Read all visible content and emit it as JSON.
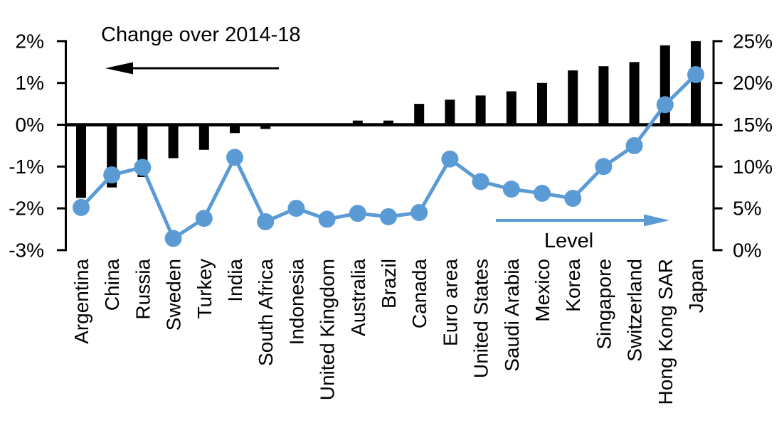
{
  "chart_data": {
    "type": "combo_bar_line",
    "title": "",
    "categories": [
      "Argentina",
      "China",
      "Russia",
      "Sweden",
      "Turkey",
      "India",
      "South Africa",
      "Indonesia",
      "United Kingdom",
      "Australia",
      "Brazil",
      "Canada",
      "Euro area",
      "United States",
      "Saudi Arabia",
      "Mexico",
      "Korea",
      "Singapore",
      "Switzerland",
      "Hong Kong SAR",
      "Japan"
    ],
    "series": [
      {
        "name": "Change over 2014-18",
        "type": "bar",
        "axis": "left",
        "color": "#000000",
        "values": [
          -1.75,
          -1.5,
          -1.25,
          -0.8,
          -0.6,
          -0.2,
          -0.1,
          0,
          0,
          0.1,
          0.1,
          0.5,
          0.6,
          0.7,
          0.8,
          1.0,
          1.3,
          1.4,
          1.5,
          1.9,
          2.0
        ]
      },
      {
        "name": "Level",
        "type": "line",
        "axis": "right",
        "color": "#5B9BD5",
        "values": [
          5.1,
          9.0,
          9.9,
          1.4,
          3.8,
          11.1,
          3.4,
          5.0,
          3.7,
          4.4,
          4.0,
          4.5,
          10.9,
          8.2,
          7.3,
          6.8,
          6.2,
          10.0,
          12.5,
          17.4,
          21.0
        ]
      }
    ],
    "left_axis": {
      "min": -3,
      "max": 2,
      "tick_step": 1,
      "tick_labels": [
        "2%",
        "1%",
        "0%",
        "-1%",
        "-2%",
        "-3%"
      ]
    },
    "right_axis": {
      "min": 0,
      "max": 25,
      "tick_step": 5,
      "tick_labels": [
        "25%",
        "20%",
        "15%",
        "10%",
        "5%",
        "0%"
      ]
    },
    "annotations": {
      "bar_series_label": "Change over 2014-18",
      "bar_arrow_direction": "left",
      "line_series_label": "Level",
      "line_arrow_direction": "right"
    },
    "colors": {
      "bar": "#000000",
      "line": "#5B9BD5",
      "text": "#000000",
      "background": "#FFFFFF"
    },
    "grid": false,
    "legend_position": "labels-inside-plot"
  }
}
